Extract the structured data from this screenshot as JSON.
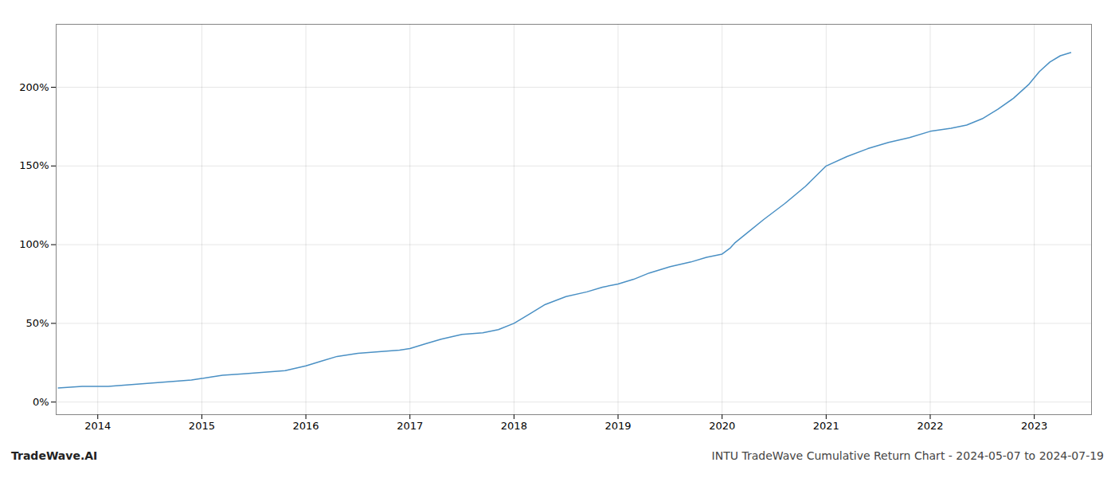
{
  "chart_data": {
    "type": "line",
    "title": "INTU TradeWave Cumulative Return Chart - 2024-05-07 to 2024-07-19",
    "annotations": [
      "TradeWave.AI"
    ],
    "color": "#4a90c4",
    "grid": true,
    "xlim": [
      2013.6,
      2023.55
    ],
    "xticks": [
      2014,
      2015,
      2016,
      2017,
      2018,
      2019,
      2020,
      2021,
      2022,
      2023
    ],
    "ylim": [
      -8,
      240
    ],
    "yticks": [
      {
        "value": 0,
        "label": "0%"
      },
      {
        "value": 50,
        "label": "50%"
      },
      {
        "value": 100,
        "label": "100%"
      },
      {
        "value": 150,
        "label": "150%"
      },
      {
        "value": 200,
        "label": "200%"
      }
    ],
    "x": [
      2013.62,
      2013.85,
      2014.1,
      2014.3,
      2014.5,
      2014.7,
      2014.9,
      2015.0,
      2015.1,
      2015.2,
      2015.4,
      2015.6,
      2015.8,
      2016.0,
      2016.15,
      2016.3,
      2016.5,
      2016.7,
      2016.9,
      2017.0,
      2017.15,
      2017.3,
      2017.5,
      2017.7,
      2017.85,
      2018.0,
      2018.15,
      2018.3,
      2018.5,
      2018.7,
      2018.85,
      2019.0,
      2019.15,
      2019.3,
      2019.5,
      2019.7,
      2019.85,
      2020.0,
      2020.08,
      2020.12,
      2020.25,
      2020.4,
      2020.6,
      2020.8,
      2021.0,
      2021.2,
      2021.4,
      2021.6,
      2021.8,
      2022.0,
      2022.2,
      2022.35,
      2022.5,
      2022.65,
      2022.8,
      2022.95,
      2023.05,
      2023.15,
      2023.25,
      2023.35
    ],
    "values": [
      9,
      10,
      10,
      11,
      12,
      13,
      14,
      15,
      16,
      17,
      18,
      19,
      20,
      23,
      26,
      29,
      31,
      32,
      33,
      34,
      37,
      40,
      43,
      44,
      46,
      50,
      56,
      62,
      67,
      70,
      73,
      75,
      78,
      82,
      86,
      89,
      92,
      94,
      98,
      101,
      108,
      116,
      126,
      137,
      150,
      156,
      161,
      165,
      168,
      172,
      174,
      176,
      180,
      186,
      193,
      202,
      210,
      216,
      220,
      222
    ]
  }
}
